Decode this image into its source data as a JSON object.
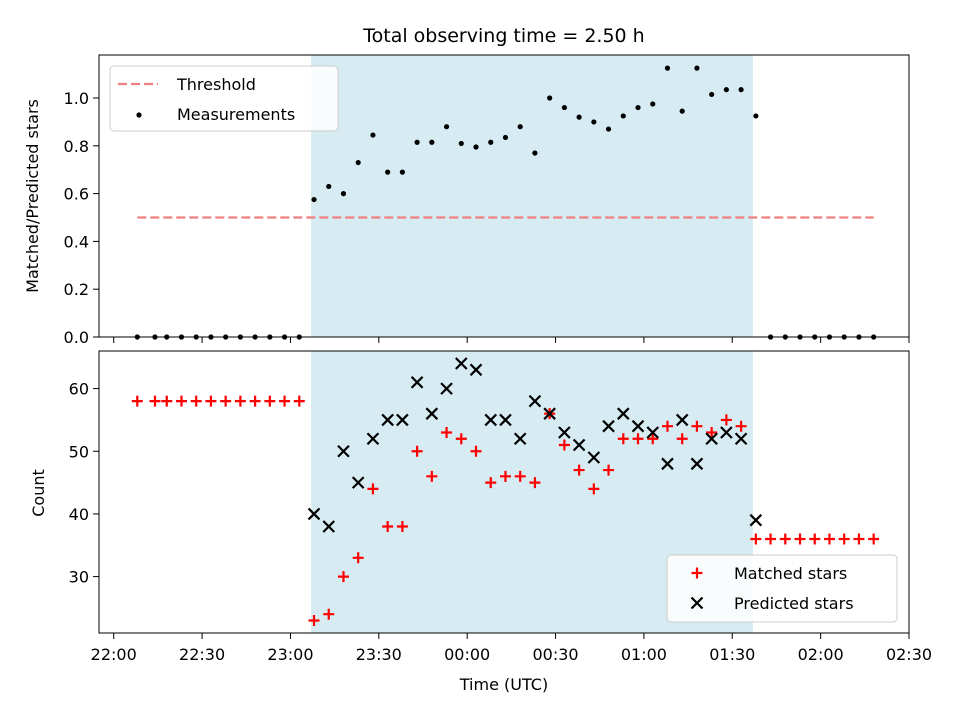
{
  "chart_data": {
    "type": "scatter",
    "title": "Total observing time = 2.50 h",
    "xlabel": "Time (UTC)",
    "x_tick_labels": [
      "22:00",
      "22:30",
      "23:00",
      "23:30",
      "00:00",
      "00:30",
      "01:00",
      "01:30",
      "02:00",
      "02:30"
    ],
    "x_tick_minutes": [
      0,
      30,
      60,
      90,
      120,
      150,
      180,
      210,
      240,
      270
    ],
    "xlim_minutes": [
      -5,
      270
    ],
    "shaded_span_minutes": [
      67,
      217
    ],
    "shade_color": "#add8e6",
    "top": {
      "ylabel": "Matched/Predicted stars",
      "ylim": [
        0,
        1.18
      ],
      "y_ticks": [
        0.0,
        0.2,
        0.4,
        0.6,
        0.8,
        1.0
      ],
      "y_tick_labels": [
        "0.0",
        "0.2",
        "0.4",
        "0.6",
        "0.8",
        "1.0"
      ],
      "legend": {
        "placement": "upper-left",
        "threshold_label": "Threshold",
        "measurements_label": "Measurements"
      },
      "threshold": {
        "value": 0.5,
        "x_range": [
          8,
          258
        ],
        "color": "#f08080"
      },
      "measurements": {
        "x": [
          8,
          14,
          18,
          23,
          28,
          33,
          38,
          43,
          48,
          53,
          58,
          63,
          68,
          73,
          78,
          83,
          88,
          93,
          98,
          103,
          108,
          113,
          118,
          123,
          128,
          133,
          138,
          143,
          148,
          153,
          158,
          163,
          168,
          173,
          178,
          183,
          188,
          193,
          198,
          203,
          208,
          213,
          218,
          223,
          228,
          233,
          238,
          243,
          248,
          253,
          258
        ],
        "y": [
          0,
          0,
          0,
          0,
          0,
          0,
          0,
          0,
          0,
          0,
          0,
          0,
          0.575,
          0.63,
          0.6,
          0.73,
          0.845,
          0.69,
          0.69,
          0.815,
          0.815,
          0.88,
          0.81,
          0.795,
          0.815,
          0.835,
          0.88,
          0.77,
          1.0,
          0.96,
          0.92,
          0.9,
          0.87,
          0.925,
          0.96,
          0.975,
          1.125,
          0.945,
          1.125,
          1.015,
          1.035,
          1.035,
          0.925,
          0,
          0,
          0,
          0,
          0,
          0,
          0,
          0
        ],
        "color": "#000000"
      }
    },
    "bottom": {
      "ylabel": "Count",
      "ylim": [
        21,
        66
      ],
      "y_ticks": [
        30,
        40,
        50,
        60
      ],
      "y_tick_labels": [
        "30",
        "40",
        "50",
        "60"
      ],
      "legend": {
        "placement": "lower-right",
        "matched_label": "Matched stars",
        "predicted_label": "Predicted stars"
      },
      "matched": {
        "x": [
          8,
          14,
          18,
          23,
          28,
          33,
          38,
          43,
          48,
          53,
          58,
          63,
          68,
          73,
          78,
          83,
          88,
          93,
          98,
          103,
          108,
          113,
          118,
          123,
          128,
          133,
          138,
          143,
          148,
          153,
          158,
          163,
          168,
          173,
          178,
          183,
          188,
          193,
          198,
          203,
          208,
          213,
          218,
          223,
          228,
          233,
          238,
          243,
          248,
          253,
          258
        ],
        "y": [
          58,
          58,
          58,
          58,
          58,
          58,
          58,
          58,
          58,
          58,
          58,
          58,
          23,
          24,
          30,
          33,
          44,
          38,
          38,
          50,
          46,
          53,
          52,
          50,
          45,
          46,
          46,
          45,
          56,
          51,
          47,
          44,
          47,
          52,
          52,
          52,
          54,
          52,
          54,
          53,
          55,
          54,
          36,
          36,
          36,
          36,
          36,
          36,
          36,
          36,
          36
        ],
        "color": "#ff0000"
      },
      "predicted": {
        "x": [
          68,
          73,
          78,
          83,
          88,
          93,
          98,
          103,
          108,
          113,
          118,
          123,
          128,
          133,
          138,
          143,
          148,
          153,
          158,
          163,
          168,
          173,
          178,
          183,
          188,
          193,
          198,
          203,
          208,
          213,
          218
        ],
        "y": [
          40,
          38,
          50,
          45,
          52,
          55,
          55,
          61,
          56,
          60,
          64,
          63,
          55,
          55,
          52,
          58,
          56,
          53,
          51,
          49,
          54,
          56,
          54,
          53,
          48,
          55,
          48,
          52,
          53,
          52,
          39
        ],
        "color": "#000000"
      }
    }
  }
}
